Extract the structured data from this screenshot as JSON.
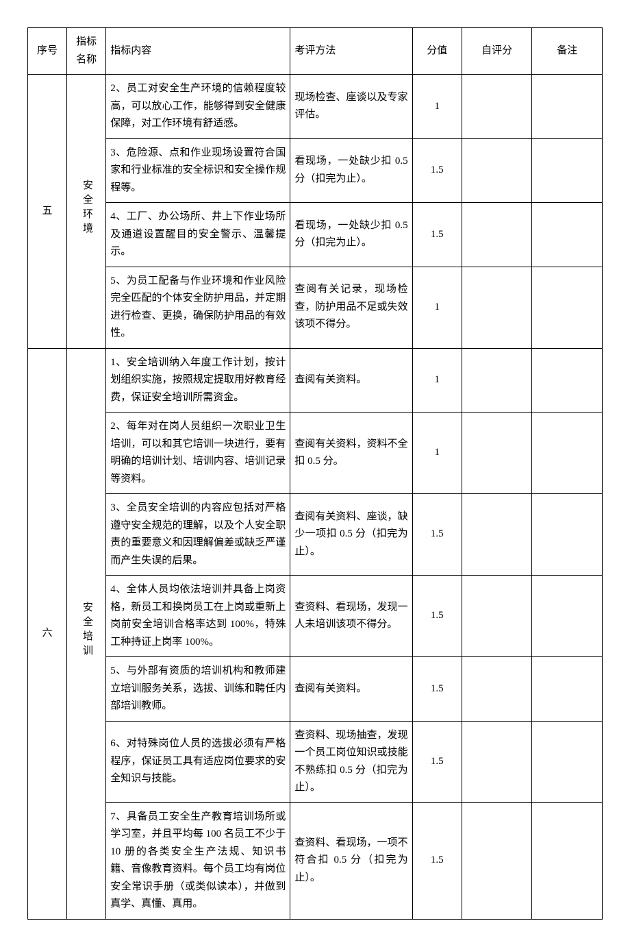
{
  "header": {
    "seq": "序号",
    "name": "指标名称",
    "content": "指标内容",
    "method": "考评方法",
    "score": "分值",
    "self": "自评分",
    "note": "备注"
  },
  "sections": [
    {
      "seq": "五",
      "name": "安全环境",
      "rows": [
        {
          "content": "2、员工对安全生产环境的信赖程度较高，可以放心工作，能够得到安全健康保障，对工作环境有舒适感。",
          "method": "现场检查、座谈以及专家评估。",
          "score": "1",
          "self": "",
          "note": ""
        },
        {
          "content": "3、危险源、点和作业现场设置符合国家和行业标准的安全标识和安全操作规程等。",
          "method": "看现场，一处缺少扣 0.5 分（扣完为止）。",
          "score": "1.5",
          "self": "",
          "note": ""
        },
        {
          "content": "4、工厂、办公场所、井上下作业场所及通道设置醒目的安全警示、温馨提示。",
          "method": "看现场，一处缺少扣 0.5 分（扣完为止）。",
          "score": "1.5",
          "self": "",
          "note": ""
        },
        {
          "content": "5、为员工配备与作业环境和作业风险完全匹配的个体安全防护用品，并定期进行检查、更换，确保防护用品的有效性。",
          "method": "查阅有关记录，现场检查，防护用品不足或失效该项不得分。",
          "score": "1",
          "self": "",
          "note": ""
        }
      ]
    },
    {
      "seq": "六",
      "name": "安全培训",
      "rows": [
        {
          "content": "1、安全培训纳入年度工作计划，按计划组织实施，按照规定提取用好教育经费，保证安全培训所需资金。",
          "method": "查阅有关资料。",
          "score": "1",
          "self": "",
          "note": ""
        },
        {
          "content": "2、每年对在岗人员组织一次职业卫生培训，可以和其它培训一块进行，要有明确的培训计划、培训内容、培训记录等资料。",
          "method": "查阅有关资料，资料不全扣 0.5 分。",
          "score": "1",
          "self": "",
          "note": ""
        },
        {
          "content": "3、全员安全培训的内容应包括对严格遵守安全规范的理解，以及个人安全职责的重要意义和因理解偏差或缺乏严谨而产生失误的后果。",
          "method": "查阅有关资料、座谈，缺少一项扣 0.5 分（扣完为止）。",
          "score": "1.5",
          "self": "",
          "note": ""
        },
        {
          "content": "4、全体人员均依法培训并具备上岗资格，新员工和换岗员工在上岗或重新上岗前安全培训合格率达到 100%，特殊工种持证上岗率 100%。",
          "method": "查资料、看现场，发现一人未培训该项不得分。",
          "score": "1.5",
          "self": "",
          "note": ""
        },
        {
          "content": "5、与外部有资质的培训机构和教师建立培训服务关系，选拔、训练和聘任内部培训教师。",
          "method": "查阅有关资料。",
          "score": "1.5",
          "self": "",
          "note": ""
        },
        {
          "content": "6、对特殊岗位人员的选拔必须有严格程序，保证员工具有适应岗位要求的安全知识与技能。",
          "method": "查资料、现场抽查，发现一个员工岗位知识或技能不熟练扣 0.5 分（扣完为止）。",
          "score": "1.5",
          "self": "",
          "note": ""
        },
        {
          "content": "7、具备员工安全生产教育培训场所或学习室，并且平均每 100 名员工不少于 10 册的各类安全生产法规、知识书籍、音像教育资料。每个员工均有岗位安全常识手册（或类似读本），并做到真学、真懂、真用。",
          "method": "查资料、看现场，一项不符合扣 0.5 分（扣完为止）。",
          "score": "1.5",
          "self": "",
          "note": ""
        }
      ]
    }
  ],
  "style": {
    "font_family": "SimSun",
    "font_size_pt": 11,
    "text_color": "#000000",
    "background_color": "#ffffff",
    "border_color": "#000000",
    "line_height": 1.7,
    "column_widths_pct": [
      6,
      6,
      34,
      22,
      8,
      12,
      12
    ],
    "column_align": [
      "center",
      "center",
      "justify",
      "justify",
      "center",
      "center",
      "center"
    ]
  }
}
